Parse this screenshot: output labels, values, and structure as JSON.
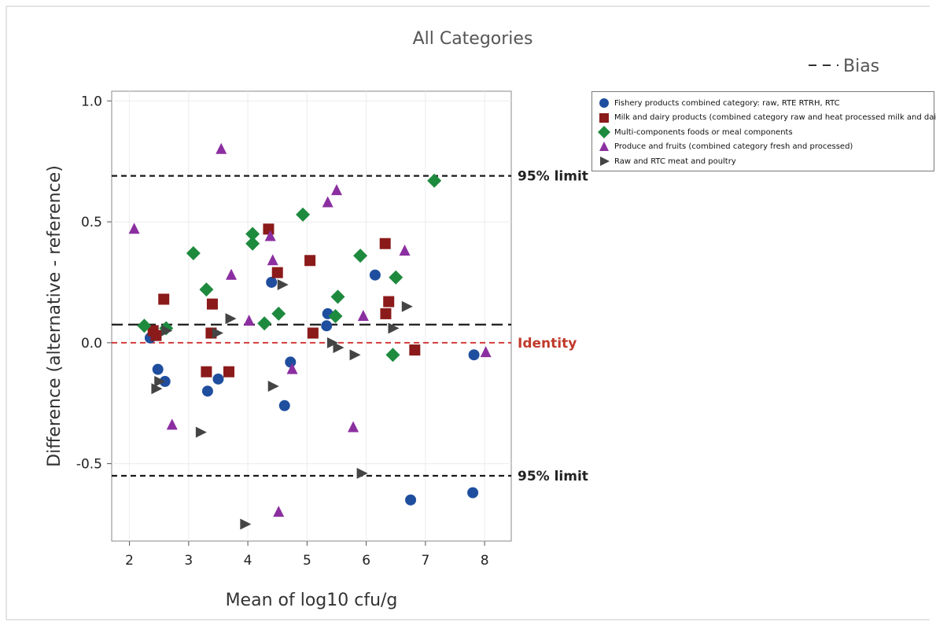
{
  "chart_data": {
    "type": "scatter",
    "title": "All Categories",
    "xlabel": "Mean of log10 cfu/g",
    "ylabel": "Difference (alternative - reference)",
    "xlim": [
      1.7,
      8.45
    ],
    "ylim": [
      -0.82,
      1.04
    ],
    "x_ticks": [
      2,
      3,
      4,
      5,
      6,
      7,
      8
    ],
    "y_ticks": [
      -0.5,
      0.0,
      0.5,
      1.0
    ],
    "x_tick_labels": [
      "2",
      "3",
      "4",
      "5",
      "6",
      "7",
      "8"
    ],
    "y_tick_labels": [
      "-0.5",
      "0.0",
      "0.5",
      "1.0"
    ],
    "grid": true,
    "legend_position": "top-right, outside plot",
    "bias_legend_label": "Bias",
    "reference_lines": [
      {
        "name": "upper_limit",
        "label": "95% limit",
        "y": 0.69,
        "style": "dashed",
        "color": "#1a1a1a"
      },
      {
        "name": "bias",
        "label": "",
        "y": 0.075,
        "style": "long-dash",
        "color": "#1a1a1a"
      },
      {
        "name": "identity",
        "label": "Identity",
        "y": 0.0,
        "style": "dashed",
        "color": "#d03030"
      },
      {
        "name": "lower_limit",
        "label": "95% limit",
        "y": -0.55,
        "style": "dashed",
        "color": "#1a1a1a"
      }
    ],
    "series": [
      {
        "name": "Fishery products combined category: raw, RTE RTRH, RTC",
        "marker": "circle",
        "color": "#1f4e9e",
        "points": [
          [
            2.35,
            0.02
          ],
          [
            2.48,
            -0.11
          ],
          [
            2.6,
            -0.16
          ],
          [
            3.32,
            -0.2
          ],
          [
            3.5,
            -0.15
          ],
          [
            4.4,
            0.25
          ],
          [
            4.62,
            -0.26
          ],
          [
            4.72,
            -0.08
          ],
          [
            5.33,
            0.07
          ],
          [
            5.35,
            0.12
          ],
          [
            6.15,
            0.28
          ],
          [
            6.75,
            -0.65
          ],
          [
            7.8,
            -0.62
          ],
          [
            7.82,
            -0.05
          ]
        ]
      },
      {
        "name": "Milk and dairy products (combined category raw and heat processed milk and dairy)",
        "marker": "square",
        "color": "#8b1a1a",
        "points": [
          [
            2.4,
            0.05
          ],
          [
            2.45,
            0.03
          ],
          [
            2.58,
            0.18
          ],
          [
            3.3,
            -0.12
          ],
          [
            3.38,
            0.04
          ],
          [
            3.4,
            0.16
          ],
          [
            3.68,
            -0.12
          ],
          [
            4.35,
            0.47
          ],
          [
            4.5,
            0.29
          ],
          [
            5.05,
            0.34
          ],
          [
            5.1,
            0.04
          ],
          [
            6.32,
            0.41
          ],
          [
            6.33,
            0.12
          ],
          [
            6.38,
            0.17
          ],
          [
            6.82,
            -0.03
          ]
        ]
      },
      {
        "name": "Multi-components foods or meal components",
        "marker": "diamond",
        "color": "#1e8a3e",
        "points": [
          [
            2.25,
            0.07
          ],
          [
            2.62,
            0.06
          ],
          [
            3.08,
            0.37
          ],
          [
            3.3,
            0.22
          ],
          [
            4.08,
            0.45
          ],
          [
            4.08,
            0.41
          ],
          [
            4.28,
            0.08
          ],
          [
            4.52,
            0.12
          ],
          [
            4.93,
            0.53
          ],
          [
            5.48,
            0.11
          ],
          [
            5.52,
            0.19
          ],
          [
            5.9,
            0.36
          ],
          [
            6.45,
            -0.05
          ],
          [
            6.5,
            0.27
          ],
          [
            7.15,
            0.67
          ]
        ]
      },
      {
        "name": "Produce and fruits (combined category fresh and processed)",
        "marker": "triangle-up",
        "color": "#8b2fa0",
        "points": [
          [
            2.08,
            0.47
          ],
          [
            2.72,
            -0.34
          ],
          [
            3.55,
            0.8
          ],
          [
            3.72,
            0.28
          ],
          [
            4.02,
            0.09
          ],
          [
            4.38,
            0.44
          ],
          [
            4.42,
            0.34
          ],
          [
            4.52,
            -0.7
          ],
          [
            4.75,
            -0.11
          ],
          [
            5.35,
            0.58
          ],
          [
            5.5,
            0.63
          ],
          [
            5.78,
            -0.35
          ],
          [
            5.95,
            0.11
          ],
          [
            6.65,
            0.38
          ],
          [
            8.02,
            -0.04
          ]
        ]
      },
      {
        "name": "Raw and RTC meat and poultry",
        "marker": "triangle-right",
        "color": "#444444",
        "points": [
          [
            2.45,
            -0.19
          ],
          [
            2.5,
            -0.16
          ],
          [
            2.62,
            0.05
          ],
          [
            3.2,
            -0.37
          ],
          [
            3.48,
            0.04
          ],
          [
            3.7,
            0.1
          ],
          [
            3.95,
            -0.75
          ],
          [
            4.42,
            -0.18
          ],
          [
            4.58,
            0.24
          ],
          [
            5.42,
            0.0
          ],
          [
            5.52,
            -0.02
          ],
          [
            5.8,
            -0.05
          ],
          [
            5.92,
            -0.54
          ],
          [
            6.45,
            0.06
          ],
          [
            6.68,
            0.15
          ]
        ]
      }
    ]
  },
  "legend": {
    "bias_label": "Bias",
    "items": [
      "Fishery products combined category: raw, RTE RTRH, RTC",
      "Milk and dairy products (combined category raw and heat processed milk and dairy)",
      "Multi-components foods or meal components",
      "Produce and fruits (combined category fresh and processed)",
      "Raw and RTC meat and poultry"
    ]
  }
}
